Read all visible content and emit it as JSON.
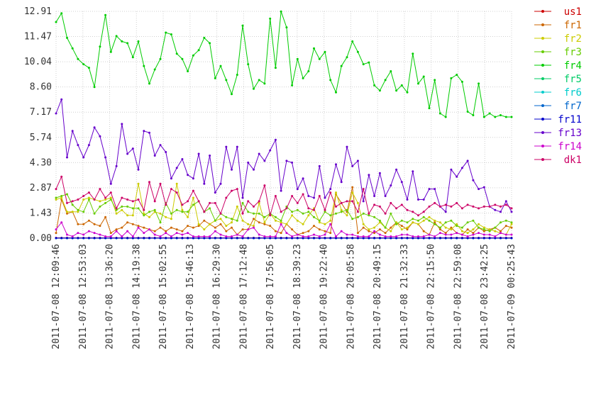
{
  "chart_data": {
    "type": "line",
    "title": "",
    "xlabel": "",
    "ylabel": "",
    "ylim": [
      0,
      12.91
    ],
    "y_ticks": [
      "0.00",
      "1.43",
      "2.87",
      "4.30",
      "5.74",
      "7.17",
      "8.60",
      "10.04",
      "11.47",
      "12.91"
    ],
    "x_tick_labels": [
      "2011-07-08 12:09:46",
      "2011-07-08 12:53:03",
      "2011-07-08 13:36:20",
      "2011-07-08 14:19:38",
      "2011-07-08 15:02:55",
      "2011-07-08 15:46:13",
      "2011-07-08 16:29:30",
      "2011-07-08 17:12:48",
      "2011-07-08 17:56:05",
      "2011-07-08 18:39:23",
      "2011-07-08 19:22:40",
      "2011-07-08 20:05:58",
      "2011-07-08 20:49:15",
      "2011-07-08 21:32:33",
      "2011-07-08 22:15:50",
      "2011-07-08 22:59:08",
      "2011-07-08 23:42:25",
      "2011-07-09 00:25:43"
    ],
    "grid": true,
    "legend_position": "right",
    "series": [
      {
        "name": "us1",
        "color": "#cc0000",
        "values": [
          0.02,
          0.02,
          0.02,
          0.02,
          0.02,
          0.02,
          0.02,
          0.02,
          0.02,
          0.02,
          0.02,
          0.02,
          0.02,
          0.02,
          0.02,
          0.02,
          0.02,
          0.02,
          0.02,
          0.02,
          0.02,
          0.02,
          0.02,
          0.02,
          0.02,
          0.02,
          0.02,
          0.02,
          0.02,
          0.02,
          0.02,
          0.02,
          0.02,
          0.02,
          0.02,
          0.02,
          0.02,
          0.02,
          0.02,
          0.02,
          0.02,
          0.02,
          0.02,
          0.02,
          0.02,
          0.02,
          0.02,
          0.02,
          0.02,
          0.02,
          0.02,
          0.02,
          0.02,
          0.02,
          0.02,
          0.02,
          0.02,
          0.02,
          0.02,
          0.02,
          0.02,
          0.02,
          0.02,
          0.02,
          0.02,
          0.02,
          0.02,
          0.02,
          0.02,
          0.02,
          0.02,
          0.02,
          0.02,
          0.02,
          0.02,
          0.02,
          0.02,
          0.02,
          0.02,
          0.02,
          0.02,
          0.02,
          0.02,
          0.02
        ]
      },
      {
        "name": "fr1",
        "color": "#cc6600",
        "values": [
          0.3,
          2.2,
          1.4,
          1.5,
          0.8,
          0.8,
          1.0,
          0.8,
          0.7,
          1.2,
          0.3,
          0.5,
          0.6,
          0.9,
          0.8,
          0.7,
          0.6,
          0.5,
          0.4,
          0.6,
          0.4,
          0.6,
          0.5,
          0.4,
          0.7,
          0.6,
          0.7,
          1.0,
          0.8,
          0.6,
          0.8,
          0.4,
          0.6,
          0.2,
          0.5,
          0.5,
          1.1,
          0.9,
          0.8,
          0.7,
          0.4,
          0.3,
          0.8,
          0.5,
          0.2,
          0.3,
          0.4,
          0.7,
          0.5,
          0.4,
          0.3,
          2.5,
          2.0,
          1.5,
          2.9,
          0.3,
          0.6,
          0.4,
          0.3,
          0.5,
          0.3,
          0.6,
          0.9,
          0.7,
          0.5,
          0.9,
          0.8,
          0.4,
          0.2,
          0.9,
          0.5,
          0.3,
          0.6,
          0.3,
          0.2,
          0.5,
          0.3,
          0.6,
          0.4,
          0.5,
          0.6,
          0.4,
          0.7,
          0.6
        ]
      },
      {
        "name": "fr2",
        "color": "#cccc00",
        "values": [
          2.2,
          2.3,
          1.5,
          1.5,
          1.5,
          2.2,
          2.3,
          2.2,
          2.1,
          2.2,
          2.3,
          1.4,
          1.6,
          1.3,
          1.3,
          3.1,
          1.4,
          1.2,
          1.5,
          1.4,
          1.2,
          1.1,
          3.1,
          1.6,
          1.2,
          2.3,
          0.8,
          0.5,
          0.8,
          1.0,
          1.1,
          0.7,
          0.9,
          1.8,
          1.0,
          0.8,
          0.7,
          2.0,
          0.9,
          1.4,
          1.0,
          0.9,
          0.8,
          1.3,
          1.0,
          0.8,
          1.3,
          1.7,
          0.9,
          0.8,
          1.0,
          2.6,
          1.6,
          1.3,
          2.6,
          2.0,
          0.8,
          0.5,
          0.6,
          0.9,
          0.6,
          0.4,
          0.9,
          0.5,
          0.6,
          0.9,
          0.8,
          1.0,
          1.2,
          1.0,
          0.9,
          0.6,
          0.5,
          0.8,
          0.4,
          0.3,
          0.5,
          0.8,
          0.6,
          0.5,
          0.4,
          0.3,
          0.2,
          0.8
        ]
      },
      {
        "name": "fr3",
        "color": "#66cc00",
        "values": [
          2.3,
          2.4,
          2.5,
          1.9,
          1.6,
          1.5,
          2.2,
          1.4,
          1.8,
          2.0,
          2.2,
          1.6,
          1.8,
          1.8,
          1.7,
          1.7,
          1.3,
          1.5,
          1.6,
          0.9,
          2.0,
          1.4,
          1.6,
          1.5,
          1.5,
          1.9,
          2.1,
          1.5,
          1.7,
          1.0,
          1.4,
          1.2,
          1.1,
          1.0,
          2.0,
          1.5,
          1.4,
          1.4,
          1.2,
          1.4,
          1.2,
          1.0,
          1.8,
          1.5,
          1.6,
          1.4,
          1.5,
          1.2,
          1.0,
          1.5,
          1.3,
          1.4,
          1.5,
          1.6,
          1.1,
          1.2,
          1.4,
          1.3,
          1.2,
          1.0,
          0.6,
          1.4,
          0.8,
          1.0,
          0.9,
          1.1,
          1.0,
          1.2,
          1.0,
          0.8,
          0.6,
          0.9,
          1.0,
          0.7,
          0.6,
          0.9,
          1.0,
          0.6,
          0.5,
          0.4,
          0.6,
          0.9,
          1.0,
          0.9
        ]
      },
      {
        "name": "fr4",
        "color": "#00cc00",
        "values": [
          12.3,
          12.8,
          11.4,
          10.8,
          10.2,
          9.9,
          9.7,
          8.6,
          10.9,
          12.7,
          10.6,
          11.5,
          11.2,
          11.1,
          10.3,
          11.2,
          9.8,
          8.8,
          9.6,
          10.2,
          11.7,
          11.6,
          10.5,
          10.2,
          9.5,
          10.4,
          10.7,
          11.4,
          11.1,
          9.1,
          9.8,
          9.0,
          8.2,
          9.3,
          12.1,
          9.9,
          8.5,
          9.0,
          8.8,
          12.5,
          9.7,
          12.9,
          12.0,
          8.7,
          10.2,
          9.1,
          9.5,
          10.8,
          10.2,
          10.6,
          9.0,
          8.3,
          9.8,
          10.3,
          11.2,
          10.6,
          9.9,
          10.0,
          8.7,
          8.4,
          9.0,
          9.5,
          8.4,
          8.7,
          8.3,
          10.5,
          8.8,
          9.2,
          7.4,
          9.0,
          7.1,
          6.9,
          9.1,
          9.3,
          8.9,
          7.2,
          7.0,
          8.8,
          6.9,
          7.1,
          6.9,
          7.0,
          6.9,
          6.9
        ]
      },
      {
        "name": "fr5",
        "color": "#00cc66",
        "values": [
          0,
          0,
          0,
          0,
          0,
          0,
          0,
          0,
          0,
          0,
          0,
          0,
          0,
          0,
          0,
          0,
          0,
          0,
          0,
          0,
          0,
          0,
          0,
          0,
          0,
          0,
          0,
          0,
          0,
          0,
          0,
          0,
          0,
          0,
          0,
          0,
          0,
          0,
          0,
          0,
          0,
          0,
          0,
          0,
          0,
          0,
          0,
          0,
          0,
          0,
          0,
          0,
          0,
          0,
          0,
          0,
          0,
          0,
          0,
          0,
          0,
          0,
          0,
          0,
          0,
          0,
          0,
          0,
          0,
          0,
          0,
          0,
          0,
          0,
          0,
          0,
          0,
          0,
          0,
          0,
          0,
          0,
          0,
          0
        ]
      },
      {
        "name": "fr6",
        "color": "#00cccc",
        "values": [
          0,
          0,
          0,
          0,
          0,
          0,
          0,
          0,
          0,
          0,
          0,
          0,
          0,
          0,
          0,
          0,
          0,
          0,
          0,
          0,
          0,
          0,
          0,
          0,
          0,
          0,
          0,
          0,
          0,
          0,
          0,
          0,
          0,
          0,
          0,
          0,
          0,
          0,
          0,
          0,
          0,
          0,
          0,
          0,
          0,
          0,
          0,
          0,
          0,
          0,
          0,
          0,
          0,
          0,
          0,
          0,
          0,
          0,
          0,
          0,
          0,
          0,
          0,
          0,
          0,
          0,
          0,
          0,
          0,
          0,
          0,
          0,
          0,
          0,
          0,
          0,
          0,
          0,
          0,
          0,
          0,
          0,
          0,
          0
        ]
      },
      {
        "name": "fr7",
        "color": "#0066cc",
        "values": [
          0,
          0,
          0,
          0,
          0,
          0,
          0,
          0,
          0,
          0,
          0,
          0,
          0,
          0,
          0,
          0,
          0,
          0,
          0,
          0,
          0,
          0,
          0,
          0,
          0,
          0,
          0,
          0,
          0,
          0,
          0,
          0,
          0,
          0,
          0,
          0,
          0,
          0,
          0,
          0,
          0,
          0,
          0,
          0,
          0,
          0,
          0,
          0,
          0,
          0,
          0,
          0,
          0,
          0,
          0,
          0,
          0,
          0,
          0,
          0,
          0,
          0,
          0,
          0,
          0,
          0,
          0,
          0,
          0,
          0,
          0,
          0,
          0,
          0,
          0,
          0,
          0,
          0,
          0,
          0,
          0,
          0,
          0,
          0
        ]
      },
      {
        "name": "fr11",
        "color": "#0000cc",
        "values": [
          0.01,
          0.01,
          0.01,
          0.01,
          0.01,
          0.01,
          0.01,
          0.01,
          0.01,
          0.01,
          0.01,
          0.01,
          0.01,
          0.01,
          0.01,
          0.01,
          0.01,
          0.01,
          0.01,
          0.01,
          0.01,
          0.01,
          0.01,
          0.01,
          0.01,
          0.01,
          0.01,
          0.01,
          0.01,
          0.01,
          0.01,
          0.01,
          0.01,
          0.01,
          0.01,
          0.01,
          0.01,
          0.01,
          0.01,
          0.01,
          0.01,
          0.01,
          0.01,
          0.01,
          0.01,
          0.01,
          0.01,
          0.01,
          0.01,
          0.01,
          0.01,
          0.01,
          0.01,
          0.01,
          0.01,
          0.01,
          0.01,
          0.01,
          0.01,
          0.01,
          0.01,
          0.01,
          0.01,
          0.01,
          0.01,
          0.01,
          0.01,
          0.01,
          0.01,
          0.01,
          0.01,
          0.01,
          0.01,
          0.01,
          0.01,
          0.01,
          0.01,
          0.01,
          0.01,
          0.01,
          0.01,
          0.01,
          0.01,
          0.01
        ]
      },
      {
        "name": "fr13",
        "color": "#6600cc",
        "values": [
          7.1,
          7.9,
          4.6,
          6.1,
          5.3,
          4.6,
          5.3,
          6.3,
          5.8,
          4.6,
          3.1,
          4.1,
          6.5,
          4.8,
          5.1,
          3.9,
          6.1,
          6.0,
          4.7,
          5.3,
          4.9,
          3.4,
          4.0,
          4.5,
          3.6,
          3.4,
          4.8,
          3.1,
          4.7,
          2.6,
          3.1,
          5.2,
          3.9,
          5.2,
          2.3,
          4.3,
          3.9,
          4.8,
          4.4,
          5.0,
          5.6,
          2.7,
          4.4,
          4.3,
          2.8,
          3.4,
          2.4,
          2.3,
          4.1,
          2.3,
          2.8,
          4.2,
          3.2,
          5.2,
          4.1,
          4.4,
          2.1,
          3.6,
          2.4,
          3.7,
          2.4,
          3.0,
          3.9,
          3.2,
          2.2,
          3.8,
          2.2,
          2.2,
          2.8,
          2.8,
          1.8,
          1.5,
          3.9,
          3.5,
          4.0,
          4.4,
          3.3,
          2.8,
          2.9,
          1.8,
          1.6,
          1.5,
          2.1,
          1.5
        ]
      },
      {
        "name": "fr14",
        "color": "#cc00cc",
        "values": [
          0.5,
          0.9,
          0.2,
          0.1,
          0.3,
          0.2,
          0.4,
          0.3,
          0.2,
          0.1,
          0.1,
          0.4,
          0.1,
          0.4,
          0.1,
          0.6,
          0.3,
          0.5,
          0.2,
          0.1,
          0.3,
          0.1,
          0.3,
          0.2,
          0.3,
          0.1,
          0.1,
          0.1,
          0.1,
          0.4,
          0.2,
          0.1,
          0.1,
          0.2,
          0.1,
          0.5,
          0.6,
          0.2,
          0.1,
          0.1,
          0.1,
          0.8,
          0.3,
          0.1,
          0.2,
          0.1,
          0.1,
          0.2,
          0.1,
          0.2,
          0.8,
          0.1,
          0.4,
          0.2,
          0.2,
          0.1,
          0.1,
          0.1,
          0.4,
          0.2,
          0.1,
          0.1,
          0.1,
          0.2,
          0.2,
          0.1,
          0.1,
          0.1,
          0.2,
          0.1,
          0.3,
          0.2,
          0.2,
          0.3,
          0.2,
          0.1,
          0.2,
          0.3,
          0.2,
          0.2,
          0.1,
          0.3,
          0.2,
          0.2
        ]
      },
      {
        "name": "dk1",
        "color": "#cc0066",
        "values": [
          2.8,
          3.5,
          2.0,
          2.1,
          2.2,
          2.4,
          2.6,
          2.2,
          2.8,
          2.3,
          2.6,
          1.7,
          2.3,
          2.2,
          2.1,
          2.2,
          1.6,
          3.2,
          2.1,
          3.1,
          1.9,
          2.8,
          2.6,
          1.9,
          2.1,
          2.7,
          2.1,
          1.5,
          2.0,
          2.0,
          1.4,
          2.3,
          2.7,
          2.8,
          1.4,
          2.1,
          1.8,
          2.1,
          3.0,
          1.3,
          2.4,
          1.5,
          1.7,
          2.4,
          2.0,
          2.5,
          1.7,
          1.6,
          2.4,
          1.6,
          2.6,
          1.8,
          2.0,
          2.1,
          2.1,
          1.5,
          2.8,
          1.4,
          1.9,
          1.8,
          1.4,
          2.0,
          1.7,
          1.9,
          1.6,
          1.5,
          1.3,
          1.5,
          1.8,
          2.0,
          1.8,
          1.9,
          1.8,
          2.0,
          1.7,
          1.9,
          1.8,
          1.7,
          1.8,
          1.8,
          1.9,
          1.8,
          1.9,
          1.7
        ]
      }
    ]
  }
}
